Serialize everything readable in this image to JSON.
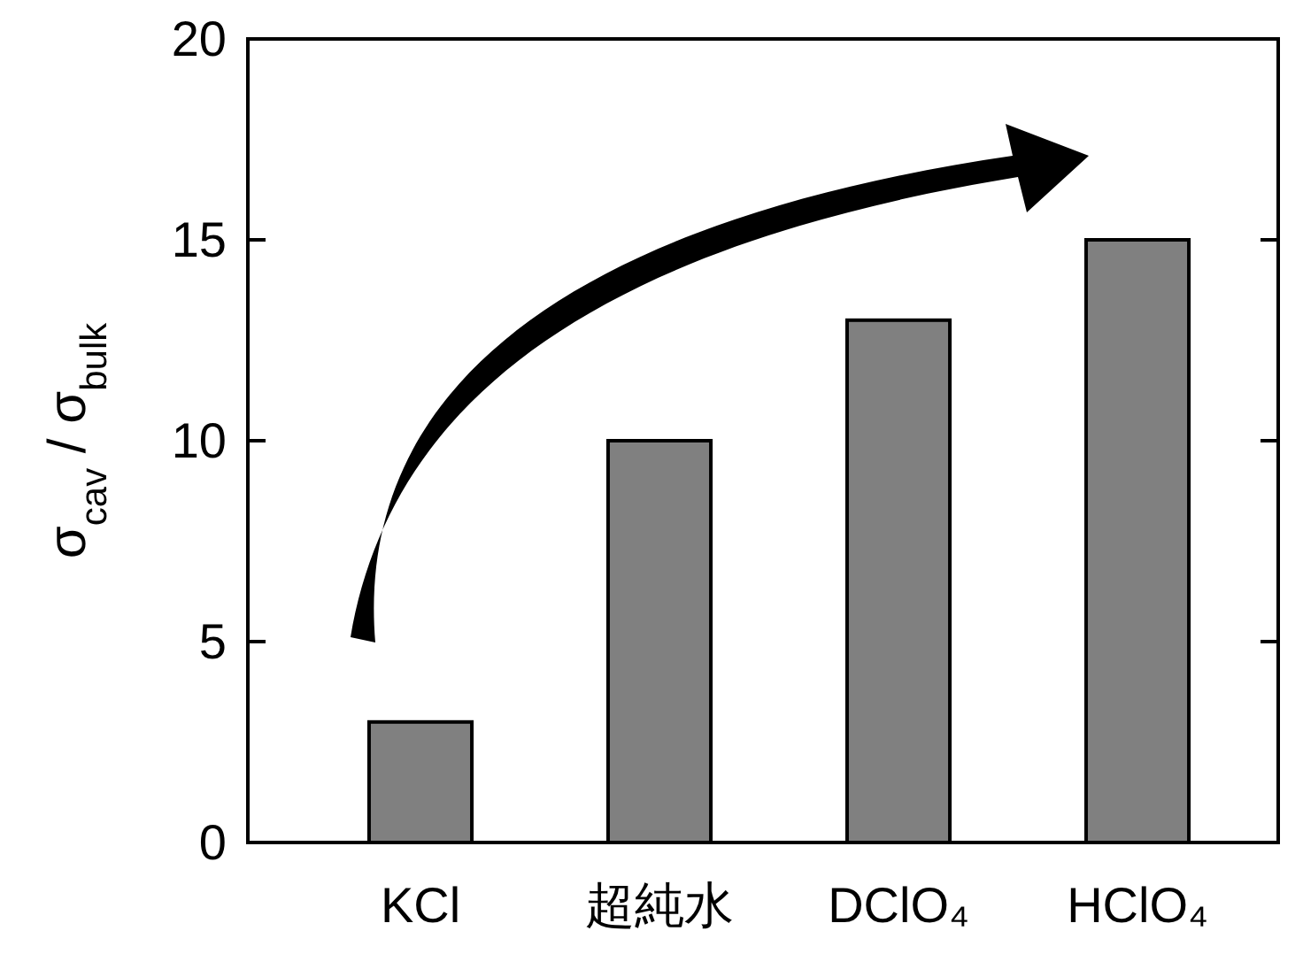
{
  "chart_data": {
    "type": "bar",
    "ylabel": "σ$_{cav}$ / σ$_{bulk}$",
    "categories": [
      "KCl",
      "超純水",
      "DClO₄",
      "HClO₄"
    ],
    "values": [
      3,
      10,
      13,
      15
    ],
    "color": "#808080",
    "ylim": [
      0,
      20
    ],
    "yticks": [
      0,
      5,
      10,
      15,
      20
    ],
    "grid": false
  }
}
